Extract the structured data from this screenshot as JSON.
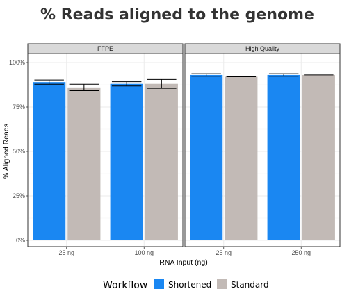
{
  "chart_data": {
    "type": "bar",
    "title": "% Reads aligned to the genome",
    "xlabel": "RNA Input (ng)",
    "ylabel": "% Aligned Reads",
    "ylim": [
      0,
      100
    ],
    "yticks": [
      "0%",
      "25%",
      "50%",
      "75%",
      "100%"
    ],
    "ytick_values": [
      0,
      25,
      50,
      75,
      100
    ],
    "grid": true,
    "legend": {
      "title": "Workflow",
      "position": "bottom",
      "items": [
        {
          "name": "Shortened",
          "color": "#1a87f2"
        },
        {
          "name": "Standard",
          "color": "#c2bab6"
        }
      ]
    },
    "facets": [
      {
        "name": "FFPE",
        "categories": [
          "25 ng",
          "100 ng"
        ],
        "series": [
          {
            "name": "Shortened",
            "values": [
              89,
              88
            ],
            "errors": [
              1.2,
              1.2
            ]
          },
          {
            "name": "Standard",
            "values": [
              86,
              88
            ],
            "errors": [
              1.8,
              2.5
            ]
          }
        ]
      },
      {
        "name": "High Quality",
        "categories": [
          "25 ng",
          "250 ng"
        ],
        "series": [
          {
            "name": "Shortened",
            "values": [
              93,
              93
            ],
            "errors": [
              0.7,
              0.7
            ]
          },
          {
            "name": "Standard",
            "values": [
              92,
              93
            ],
            "errors": [
              0,
              0
            ]
          }
        ]
      }
    ]
  }
}
